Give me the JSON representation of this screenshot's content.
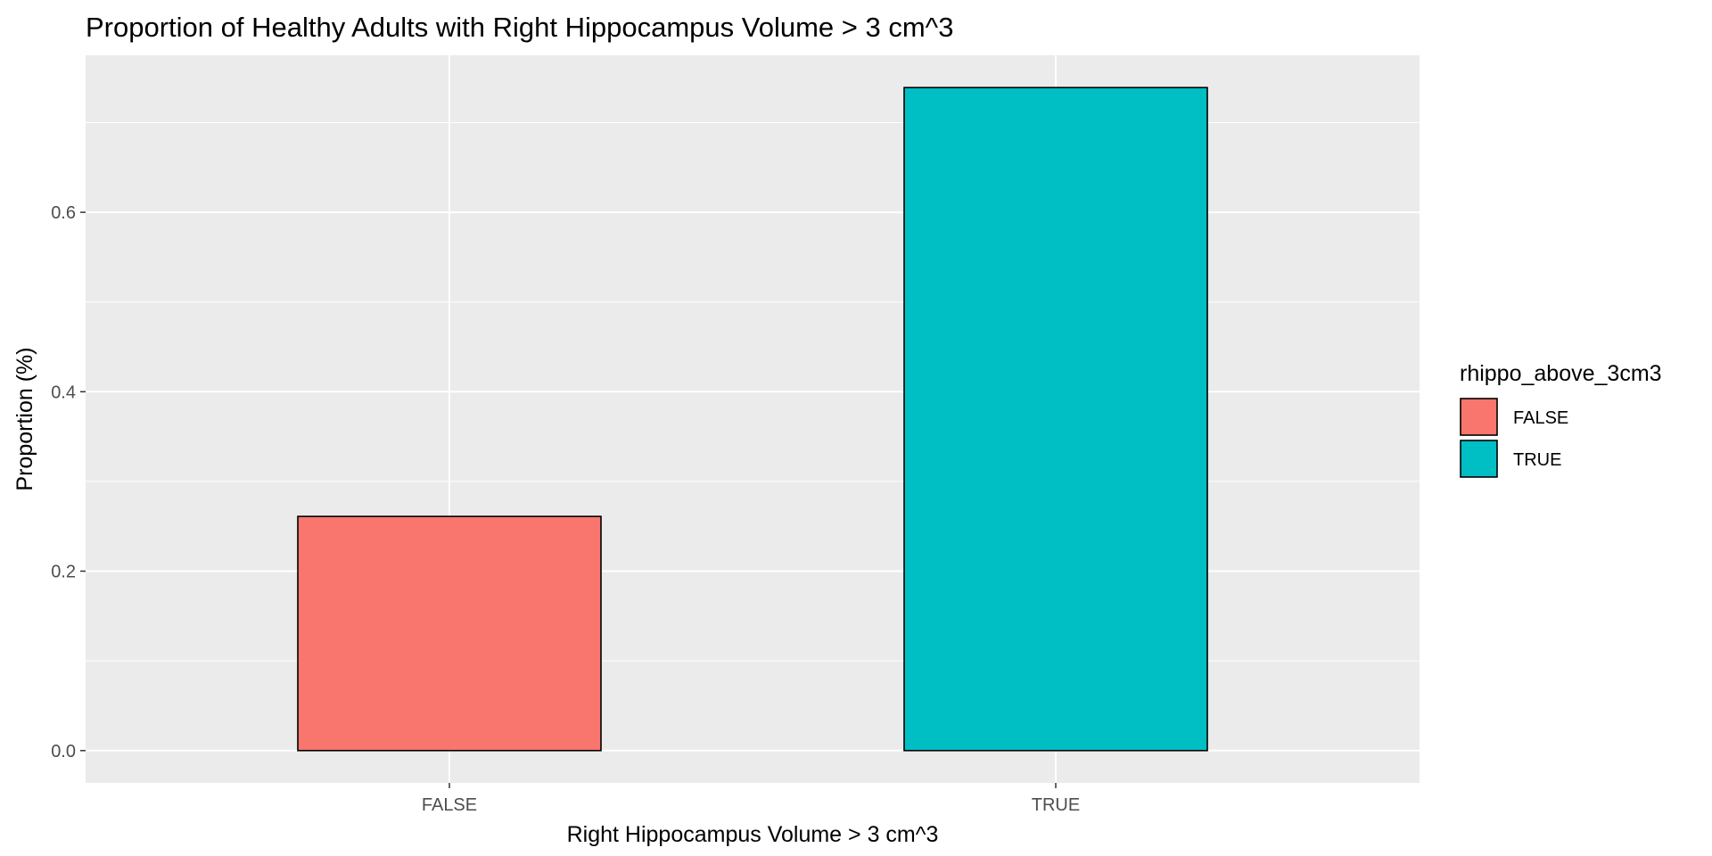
{
  "chart_data": {
    "type": "bar",
    "title": "Proportion of Healthy Adults with Right Hippocampus Volume > 3 cm^3",
    "xlabel": "Right Hippocampus Volume > 3 cm^3",
    "ylabel": "Proportion (%)",
    "categories": [
      "FALSE",
      "TRUE"
    ],
    "values": [
      0.261,
      0.739
    ],
    "colors": [
      "#F8766D",
      "#00BFC4"
    ],
    "ylim": [
      -0.036,
      0.775
    ],
    "yticks": [
      0.0,
      0.2,
      0.4,
      0.6
    ],
    "ytick_labels": [
      "0.0",
      "0.2",
      "0.4",
      "0.6"
    ],
    "grid": true,
    "legend": {
      "title": "rhippo_above_3cm3",
      "position": "right",
      "entries": [
        {
          "label": "FALSE",
          "color": "#F8766D"
        },
        {
          "label": "TRUE",
          "color": "#00BFC4"
        }
      ]
    }
  }
}
